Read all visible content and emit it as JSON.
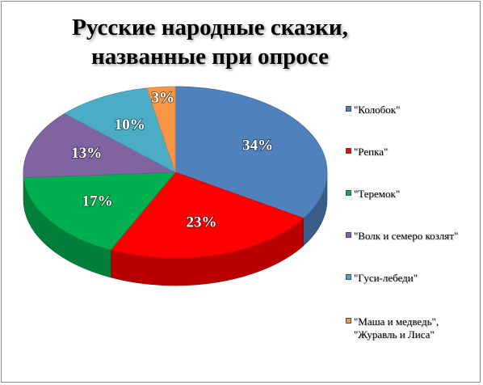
{
  "chart_data": {
    "type": "pie",
    "title_lines": [
      "Русские народные сказки,",
      "названные при опросе"
    ],
    "slices": [
      {
        "label": "\"Колобок\"",
        "value": 34,
        "data_label": "34%",
        "color": "#4f81bd"
      },
      {
        "label": "\"Репка\"",
        "value": 23,
        "data_label": "23%",
        "color": "#ff0000"
      },
      {
        "label": "\"Теремок\"",
        "value": 17,
        "data_label": "17%",
        "color": "#00b050"
      },
      {
        "label": "\"Волк и семеро козлят\"",
        "value": 13,
        "data_label": "13%",
        "color": "#8064a2"
      },
      {
        "label": "\"Гуси-лебеди\"",
        "value": 10,
        "data_label": "10%",
        "color": "#4bacc6"
      },
      {
        "label": "\"Маша и медведь\",\n\"Журавль и Лиса\"",
        "value": 3,
        "data_label": "3%",
        "color": "#f79646"
      }
    ],
    "legend_position": "right",
    "style": "3d-pie"
  }
}
